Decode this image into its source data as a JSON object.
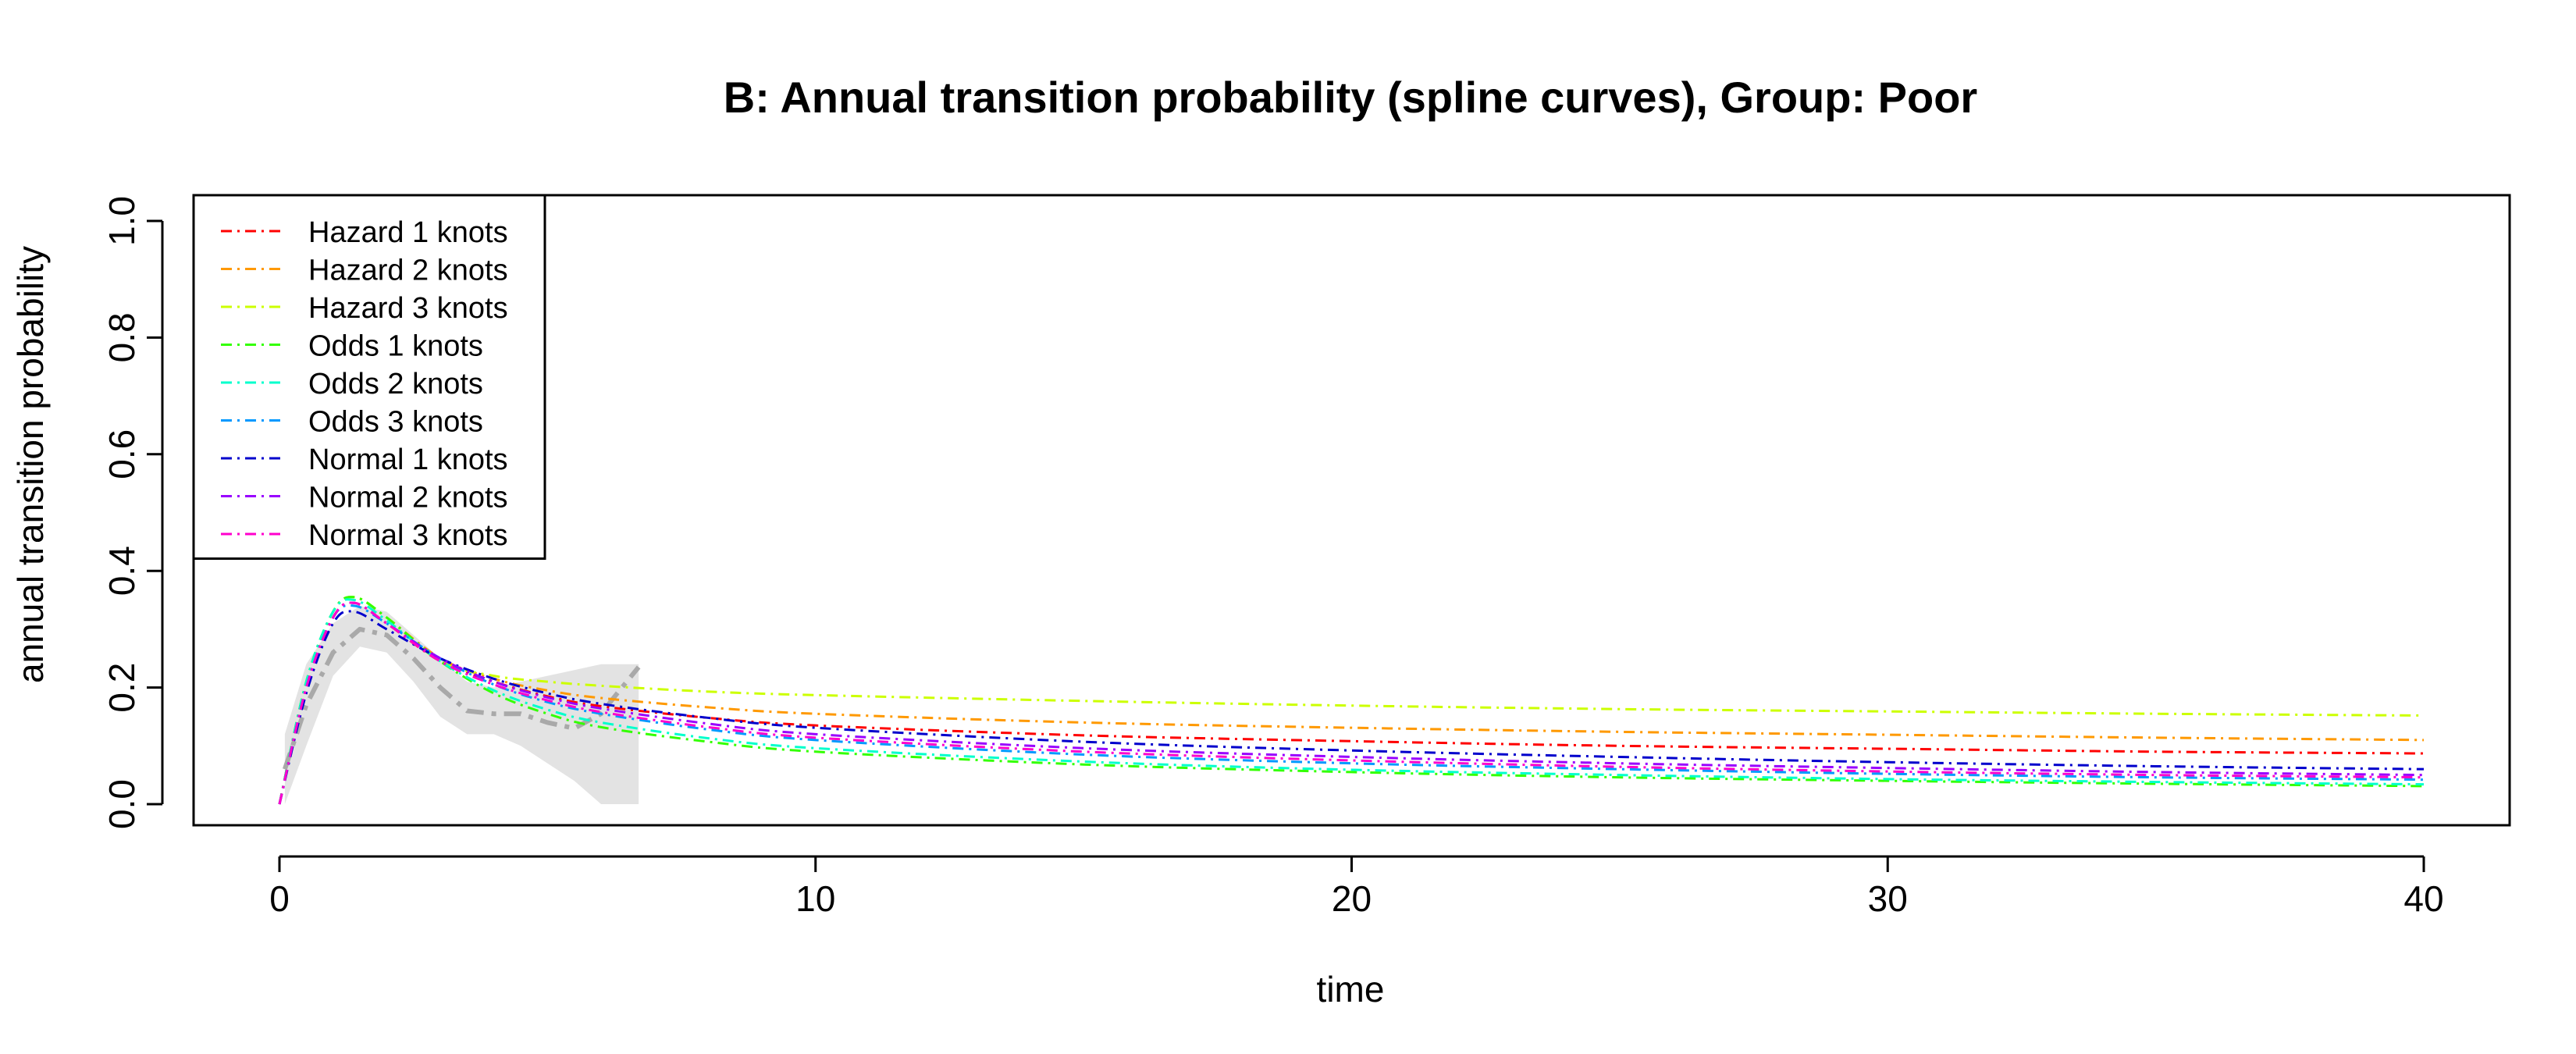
{
  "chart_data": {
    "type": "line",
    "title": "B: Annual transition probability (spline curves), Group: Poor",
    "xlabel": "time",
    "ylabel": "annual transition probability",
    "xlim": [
      0,
      40
    ],
    "ylim": [
      0,
      1
    ],
    "xticks": [
      0,
      10,
      20,
      30,
      40
    ],
    "yticks": [
      0.0,
      0.2,
      0.4,
      0.6,
      0.8,
      1.0
    ],
    "ytick_labels": [
      "0.0",
      "0.2",
      "0.4",
      "0.6",
      "0.8",
      "1.0"
    ],
    "grid": false,
    "legend_position": "top-left",
    "observed": {
      "color": "#A9A9A9",
      "band_color": "#E3E3E3",
      "x": [
        0.1,
        0.5,
        1.0,
        1.5,
        2.0,
        2.5,
        3.0,
        3.5,
        4.0,
        4.5,
        5.0,
        5.5,
        6.0,
        6.3,
        6.7
      ],
      "y": [
        0.06,
        0.17,
        0.26,
        0.3,
        0.29,
        0.25,
        0.2,
        0.16,
        0.155,
        0.155,
        0.14,
        0.13,
        0.155,
        0.19,
        0.235
      ],
      "lower": [
        0.0,
        0.1,
        0.22,
        0.27,
        0.26,
        0.21,
        0.15,
        0.12,
        0.12,
        0.1,
        0.07,
        0.04,
        0.0,
        0.0,
        0.0
      ],
      "upper": [
        0.12,
        0.24,
        0.31,
        0.34,
        0.33,
        0.29,
        0.25,
        0.21,
        0.2,
        0.21,
        0.22,
        0.23,
        0.24,
        0.24,
        0.24
      ]
    },
    "series": [
      {
        "name": "Hazard 1 knots",
        "color": "#FF0000",
        "x": [
          0,
          0.5,
          1,
          1.4,
          2,
          3,
          4,
          5,
          6,
          8,
          10,
          15,
          20,
          25,
          30,
          35,
          40
        ],
        "y": [
          0.0,
          0.2,
          0.32,
          0.345,
          0.31,
          0.245,
          0.21,
          0.185,
          0.168,
          0.148,
          0.135,
          0.118,
          0.108,
          0.1,
          0.095,
          0.09,
          0.087
        ]
      },
      {
        "name": "Hazard 2 knots",
        "color": "#FF9900",
        "x": [
          0,
          0.5,
          1,
          1.4,
          2,
          3,
          4,
          5,
          6,
          8,
          10,
          15,
          20,
          25,
          30,
          35,
          40
        ],
        "y": [
          0.0,
          0.21,
          0.33,
          0.355,
          0.32,
          0.25,
          0.215,
          0.195,
          0.182,
          0.166,
          0.155,
          0.14,
          0.131,
          0.124,
          0.119,
          0.114,
          0.11
        ]
      },
      {
        "name": "Hazard 3 knots",
        "color": "#CCFF00",
        "x": [
          0,
          0.5,
          1,
          1.4,
          2,
          3,
          4,
          5,
          6,
          8,
          10,
          15,
          20,
          25,
          30,
          35,
          40
        ],
        "y": [
          0.0,
          0.21,
          0.33,
          0.355,
          0.32,
          0.245,
          0.22,
          0.21,
          0.203,
          0.193,
          0.187,
          0.177,
          0.169,
          0.163,
          0.159,
          0.155,
          0.152
        ]
      },
      {
        "name": "Odds 1 knots",
        "color": "#33FF00",
        "x": [
          0,
          0.5,
          1,
          1.4,
          2,
          3,
          4,
          5,
          6,
          8,
          10,
          15,
          20,
          25,
          30,
          35,
          40
        ],
        "y": [
          0.0,
          0.21,
          0.33,
          0.355,
          0.32,
          0.245,
          0.19,
          0.155,
          0.132,
          0.107,
          0.09,
          0.068,
          0.055,
          0.046,
          0.04,
          0.035,
          0.031
        ]
      },
      {
        "name": "Odds 2 knots",
        "color": "#00FFCC",
        "x": [
          0,
          0.5,
          1,
          1.4,
          2,
          3,
          4,
          5,
          6,
          8,
          10,
          15,
          20,
          25,
          30,
          35,
          40
        ],
        "y": [
          0.0,
          0.21,
          0.33,
          0.35,
          0.315,
          0.245,
          0.195,
          0.162,
          0.14,
          0.113,
          0.096,
          0.073,
          0.059,
          0.05,
          0.043,
          0.038,
          0.034
        ]
      },
      {
        "name": "Odds 3 knots",
        "color": "#0099FF",
        "x": [
          0,
          0.5,
          1,
          1.4,
          2,
          3,
          4,
          5,
          6,
          8,
          10,
          15,
          20,
          25,
          30,
          35,
          40
        ],
        "y": [
          0.0,
          0.2,
          0.32,
          0.34,
          0.31,
          0.25,
          0.205,
          0.175,
          0.155,
          0.128,
          0.11,
          0.085,
          0.07,
          0.06,
          0.052,
          0.046,
          0.042
        ]
      },
      {
        "name": "Normal 1 knots",
        "color": "#0000CC",
        "x": [
          0,
          0.5,
          1,
          1.4,
          2,
          3,
          4,
          5,
          6,
          8,
          10,
          15,
          20,
          25,
          30,
          35,
          40
        ],
        "y": [
          0.0,
          0.19,
          0.31,
          0.33,
          0.3,
          0.25,
          0.215,
          0.19,
          0.172,
          0.148,
          0.131,
          0.107,
          0.092,
          0.081,
          0.072,
          0.065,
          0.06
        ]
      },
      {
        "name": "Normal 2 knots",
        "color": "#9900FF",
        "x": [
          0,
          0.5,
          1,
          1.4,
          2,
          3,
          4,
          5,
          6,
          8,
          10,
          15,
          20,
          25,
          30,
          35,
          40
        ],
        "y": [
          0.0,
          0.2,
          0.32,
          0.345,
          0.31,
          0.25,
          0.21,
          0.183,
          0.164,
          0.138,
          0.12,
          0.096,
          0.081,
          0.07,
          0.062,
          0.055,
          0.05
        ]
      },
      {
        "name": "Normal 3 knots",
        "color": "#FF00CC",
        "x": [
          0,
          0.5,
          1,
          1.4,
          2,
          3,
          4,
          5,
          6,
          8,
          10,
          15,
          20,
          25,
          30,
          35,
          40
        ],
        "y": [
          0.0,
          0.2,
          0.32,
          0.345,
          0.31,
          0.245,
          0.205,
          0.178,
          0.158,
          0.132,
          0.114,
          0.09,
          0.075,
          0.064,
          0.056,
          0.05,
          0.046
        ]
      }
    ]
  }
}
